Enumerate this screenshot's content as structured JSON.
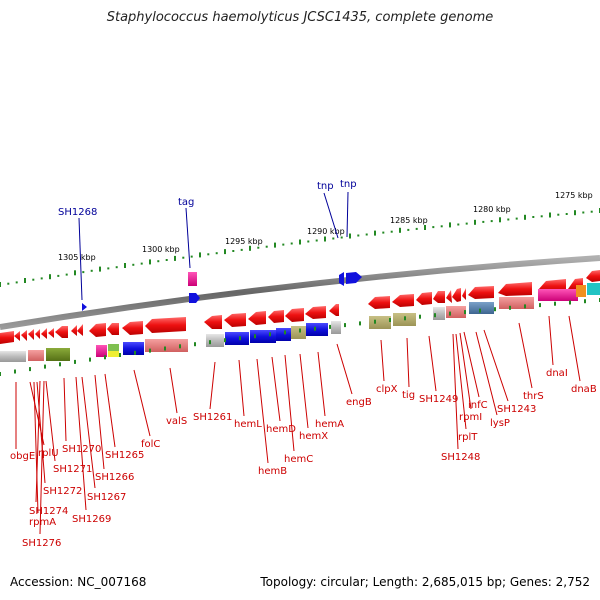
{
  "title": "Staphylococcus haemolyticus JCSC1435, complete genome",
  "accession": "Accession: NC_007168",
  "topology": "Topology: circular; Length: 2,685,015 bp; Genes: 2,752",
  "scale_labels": [
    "1305 kbp",
    "1300 kbp",
    "1295 kbp",
    "1290 kbp",
    "1285 kbp",
    "1280 kbp",
    "1275 kbp"
  ],
  "top_labels": [
    "SH1268",
    "tag",
    "tnp",
    "tnp"
  ],
  "bottom_labels": [
    "obgE",
    "rplU",
    "rpmA",
    "SH1272",
    "SH1271",
    "SH1274",
    "SH1276",
    "SH1270",
    "SH1269",
    "SH1267",
    "SH1266",
    "SH1265",
    "folC",
    "valS",
    "SH1261",
    "hemL",
    "hemB",
    "hemD",
    "hemC",
    "hemX",
    "hemA",
    "engB",
    "clpX",
    "tig",
    "SH1249",
    "SH1248",
    "rplT",
    "rpmI",
    "infC",
    "SH1243",
    "lysP",
    "thrS",
    "dnaI",
    "dnaB"
  ],
  "colors": {
    "gene_red": "#ee1111",
    "gene_blue": "#1111dd",
    "backbone": "#888888",
    "tick_green": "#228822",
    "label_red": "#cc0000",
    "label_blue": "#000099"
  }
}
